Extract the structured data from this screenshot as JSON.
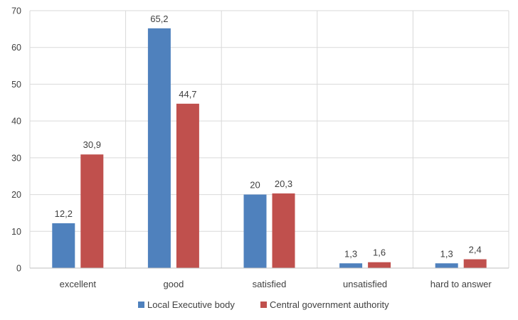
{
  "chart_data": {
    "type": "bar",
    "title": "",
    "xlabel": "",
    "ylabel": "",
    "categories": [
      "excellent",
      "good",
      "satisfied",
      "unsatisfied",
      "hard to answer"
    ],
    "series": [
      {
        "name": "Local Executive body",
        "color": "#4f81bd",
        "values": [
          12.2,
          65.2,
          20,
          1.3,
          1.3
        ],
        "labels": [
          "12,2",
          "65,2",
          "20",
          "1,3",
          "1,3"
        ]
      },
      {
        "name": "Central government authority",
        "color": "#c0504d",
        "values": [
          30.9,
          44.7,
          20.3,
          1.6,
          2.4
        ],
        "labels": [
          "30,9",
          "44,7",
          "20,3",
          "1,6",
          "2,4"
        ]
      }
    ],
    "ylim": [
      0,
      70
    ],
    "yticks": [
      0,
      10,
      20,
      30,
      40,
      50,
      60,
      70
    ],
    "grid": true,
    "legend_position": "bottom"
  }
}
